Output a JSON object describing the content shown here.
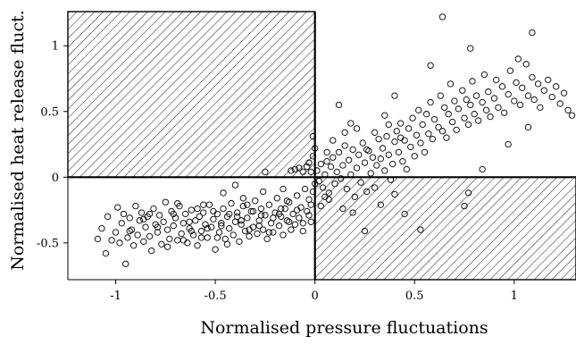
{
  "chart_data": {
    "type": "scatter",
    "xlabel": "Normalised pressure fluctuations",
    "ylabel": "Normalised heat release fluct.",
    "xlim": [
      -1.24,
      1.31
    ],
    "ylim": [
      -0.78,
      1.26
    ],
    "x_ticks": [
      -1,
      -0.5,
      0,
      0.5,
      1
    ],
    "x_tick_labels": [
      "-1",
      "-0.5",
      "0",
      "0.5",
      "1"
    ],
    "y_ticks": [
      -0.5,
      0,
      0.5,
      1
    ],
    "y_tick_labels": [
      "-0.5",
      "0",
      "0.5",
      "1"
    ],
    "grid": false,
    "marker": "open-circle",
    "hatched_regions": [
      {
        "name": "upper-left",
        "x": [
          -1.24,
          0
        ],
        "y": [
          0,
          1.26
        ]
      },
      {
        "name": "lower-right",
        "x": [
          0,
          1.31
        ],
        "y": [
          -0.78,
          0
        ]
      }
    ],
    "series": [
      {
        "points": [
          [
            -1.07,
            -0.39
          ],
          [
            -1.05,
            -0.58
          ],
          [
            -1.04,
            -0.3
          ],
          [
            -1.02,
            -0.48
          ],
          [
            -1.0,
            -0.42
          ],
          [
            -0.99,
            -0.23
          ],
          [
            -0.98,
            -0.5
          ],
          [
            -0.97,
            -0.35
          ],
          [
            -0.96,
            -0.28
          ],
          [
            -0.95,
            -0.66
          ],
          [
            -0.94,
            -0.46
          ],
          [
            -0.93,
            -0.31
          ],
          [
            -0.92,
            -0.4
          ],
          [
            -0.91,
            -0.52
          ],
          [
            -0.9,
            -0.22
          ],
          [
            -0.89,
            -0.44
          ],
          [
            -0.88,
            -0.33
          ],
          [
            -0.87,
            -0.27
          ],
          [
            -0.86,
            -0.49
          ],
          [
            -0.85,
            -0.38
          ],
          [
            -0.84,
            -0.3
          ],
          [
            -0.83,
            -0.45
          ],
          [
            -0.82,
            -0.56
          ],
          [
            -0.81,
            -0.24
          ],
          [
            -0.8,
            -0.36
          ],
          [
            -0.79,
            -0.42
          ],
          [
            -0.78,
            -0.29
          ],
          [
            -0.77,
            -0.51
          ],
          [
            -0.76,
            -0.34
          ],
          [
            -0.75,
            -0.19
          ],
          [
            -0.74,
            -0.4
          ],
          [
            -0.73,
            -0.47
          ],
          [
            -0.72,
            -0.26
          ],
          [
            -0.71,
            -0.37
          ],
          [
            -0.7,
            -0.31
          ],
          [
            -0.69,
            -0.48
          ],
          [
            -0.68,
            -0.22
          ],
          [
            -0.67,
            -0.43
          ],
          [
            -0.66,
            -0.35
          ],
          [
            -0.65,
            -0.28
          ],
          [
            -0.64,
            -0.5
          ],
          [
            -0.63,
            -0.39
          ],
          [
            -0.62,
            -0.25
          ],
          [
            -0.61,
            -0.44
          ],
          [
            -0.6,
            -0.33
          ],
          [
            -0.59,
            -0.52
          ],
          [
            -0.58,
            -0.3
          ],
          [
            -0.57,
            -0.41
          ],
          [
            -0.56,
            -0.27
          ],
          [
            -0.55,
            -0.36
          ],
          [
            -0.54,
            -0.46
          ],
          [
            -0.53,
            -0.21
          ],
          [
            -0.52,
            -0.38
          ],
          [
            -0.51,
            -0.32
          ],
          [
            -0.5,
            -0.55
          ],
          [
            -0.49,
            -0.28
          ],
          [
            -0.48,
            -0.42
          ],
          [
            -0.47,
            -0.35
          ],
          [
            -0.46,
            -0.24
          ],
          [
            -0.45,
            -0.47
          ],
          [
            -0.44,
            -0.3
          ],
          [
            -0.43,
            -0.39
          ],
          [
            -0.42,
            -0.2
          ],
          [
            -0.41,
            -0.44
          ],
          [
            -0.4,
            -0.34
          ],
          [
            -0.39,
            -0.27
          ],
          [
            -0.38,
            -0.49
          ],
          [
            -0.37,
            -0.36
          ],
          [
            -0.36,
            -0.22
          ],
          [
            -0.35,
            -0.41
          ],
          [
            -0.34,
            -0.31
          ],
          [
            -0.33,
            -0.45
          ],
          [
            -0.32,
            -0.26
          ],
          [
            -0.31,
            -0.38
          ],
          [
            -0.3,
            -0.18
          ],
          [
            -0.29,
            -0.43
          ],
          [
            -0.28,
            -0.33
          ],
          [
            -0.27,
            -0.24
          ],
          [
            -0.26,
            -0.4
          ],
          [
            -0.25,
            -0.29
          ],
          [
            -0.24,
            -0.47
          ],
          [
            -0.23,
            -0.21
          ],
          [
            -0.22,
            -0.35
          ],
          [
            -0.21,
            -0.42
          ],
          [
            -0.2,
            -0.27
          ],
          [
            -0.19,
            -0.16
          ],
          [
            -0.18,
            -0.37
          ],
          [
            -0.17,
            -0.3
          ],
          [
            -0.16,
            -0.44
          ],
          [
            -0.15,
            -0.24
          ],
          [
            -0.14,
            -0.33
          ],
          [
            -0.13,
            -0.19
          ],
          [
            -0.12,
            -0.4
          ],
          [
            -0.11,
            -0.28
          ],
          [
            -0.1,
            -0.36
          ],
          [
            -0.09,
            -0.14
          ],
          [
            -0.08,
            -0.31
          ],
          [
            -0.07,
            -0.23
          ],
          [
            -0.06,
            -0.41
          ],
          [
            -0.05,
            -0.09
          ],
          [
            -0.04,
            -0.26
          ],
          [
            -0.03,
            -0.17
          ],
          [
            -0.02,
            -0.34
          ],
          [
            -0.01,
            -0.11
          ],
          [
            0.0,
            -0.05
          ],
          [
            -0.56,
            -0.21
          ],
          [
            -0.46,
            -0.12
          ],
          [
            -0.36,
            -0.16
          ],
          [
            -0.26,
            -0.11
          ],
          [
            -0.16,
            -0.09
          ],
          [
            -0.12,
            0.05
          ],
          [
            -0.1,
            0.06
          ],
          [
            -0.08,
            0.07
          ],
          [
            -0.06,
            0.04
          ],
          [
            -0.04,
            0.08
          ],
          [
            -0.03,
            0.11
          ],
          [
            -0.02,
            0.04
          ],
          [
            -0.01,
            0.16
          ],
          [
            0.0,
            0.22
          ],
          [
            -0.01,
            0.31
          ],
          [
            0.01,
            0.05
          ],
          [
            0.02,
            -0.03
          ],
          [
            0.03,
            0.1
          ],
          [
            0.04,
            -0.08
          ],
          [
            0.05,
            0.02
          ],
          [
            0.06,
            0.12
          ],
          [
            0.07,
            -0.12
          ],
          [
            0.08,
            0.08
          ],
          [
            0.09,
            0.15
          ],
          [
            0.1,
            -0.05
          ],
          [
            0.11,
            0.04
          ],
          [
            0.12,
            0.19
          ],
          [
            0.13,
            -0.01
          ],
          [
            0.14,
            0.09
          ],
          [
            0.15,
            0.24
          ],
          [
            0.16,
            -0.09
          ],
          [
            0.17,
            0.13
          ],
          [
            0.18,
            0.02
          ],
          [
            0.19,
            0.21
          ],
          [
            0.2,
            -0.15
          ],
          [
            0.21,
            0.07
          ],
          [
            0.22,
            0.17
          ],
          [
            0.23,
            -0.04
          ],
          [
            0.24,
            0.26
          ],
          [
            0.25,
            0.11
          ],
          [
            0.26,
            -0.11
          ],
          [
            0.27,
            0.2
          ],
          [
            0.28,
            0.03
          ],
          [
            0.29,
            0.15
          ],
          [
            0.3,
            -0.08
          ],
          [
            0.31,
            0.09
          ],
          [
            0.32,
            0.29
          ],
          [
            0.33,
            0.14
          ],
          [
            0.34,
            0.22
          ],
          [
            0.35,
            0.05
          ],
          [
            0.36,
            0.31
          ],
          [
            0.37,
            0.17
          ],
          [
            0.38,
            -0.02
          ],
          [
            0.39,
            0.1
          ],
          [
            0.4,
            0.27
          ],
          [
            0.41,
            0.35
          ],
          [
            0.42,
            0.19
          ],
          [
            0.43,
            0.41
          ],
          [
            0.44,
            0.12
          ],
          [
            0.45,
            0.28
          ],
          [
            0.46,
            0.06
          ],
          [
            0.47,
            0.37
          ],
          [
            0.48,
            0.23
          ],
          [
            0.49,
            0.45
          ],
          [
            0.5,
            0.16
          ],
          [
            0.51,
            0.32
          ],
          [
            0.52,
            0.51
          ],
          [
            0.53,
            0.26
          ],
          [
            0.54,
            0.4
          ],
          [
            0.55,
            0.19
          ],
          [
            0.56,
            0.48
          ],
          [
            0.57,
            0.33
          ],
          [
            0.58,
            0.57
          ],
          [
            0.59,
            0.29
          ],
          [
            0.6,
            0.44
          ],
          [
            0.62,
            0.38
          ],
          [
            0.63,
            0.62
          ],
          [
            0.64,
            0.35
          ],
          [
            0.65,
            0.53
          ],
          [
            0.66,
            0.3
          ],
          [
            0.67,
            0.48
          ],
          [
            0.68,
            0.71
          ],
          [
            0.69,
            0.42
          ],
          [
            0.7,
            0.58
          ],
          [
            0.71,
            0.36
          ],
          [
            0.72,
            0.52
          ],
          [
            0.74,
            0.66
          ],
          [
            0.75,
            0.45
          ],
          [
            0.76,
            0.59
          ],
          [
            0.77,
            0.4
          ],
          [
            0.78,
            0.55
          ],
          [
            0.79,
            0.73
          ],
          [
            0.8,
            0.48
          ],
          [
            0.81,
            0.62
          ],
          [
            0.82,
            0.43
          ],
          [
            0.84,
            0.57
          ],
          [
            0.85,
            0.78
          ],
          [
            0.86,
            0.51
          ],
          [
            0.87,
            0.65
          ],
          [
            0.88,
            0.46
          ],
          [
            0.9,
            0.6
          ],
          [
            0.91,
            0.74
          ],
          [
            0.92,
            0.53
          ],
          [
            0.94,
            0.69
          ],
          [
            0.95,
            0.49
          ],
          [
            0.97,
            0.63
          ],
          [
            0.98,
            0.81
          ],
          [
            1.0,
            0.58
          ],
          [
            1.01,
            0.72
          ],
          [
            1.03,
            0.55
          ],
          [
            1.04,
            0.68
          ],
          [
            1.06,
            0.86
          ],
          [
            1.07,
            0.62
          ],
          [
            1.09,
            0.76
          ],
          [
            1.1,
            0.59
          ],
          [
            1.12,
            0.71
          ],
          [
            1.13,
            0.53
          ],
          [
            1.15,
            0.66
          ],
          [
            1.17,
            0.74
          ],
          [
            1.19,
            0.61
          ],
          [
            1.21,
            0.69
          ],
          [
            1.23,
            0.56
          ],
          [
            1.25,
            0.64
          ],
          [
            1.27,
            0.51
          ],
          [
            1.29,
            0.47
          ],
          [
            0.64,
            1.22
          ],
          [
            0.78,
            0.98
          ],
          [
            1.09,
            1.1
          ],
          [
            1.02,
            0.9
          ],
          [
            0.4,
            0.62
          ],
          [
            0.12,
            0.55
          ],
          [
            0.58,
            0.85
          ],
          [
            0.37,
            0.4
          ],
          [
            0.21,
            0.37
          ],
          [
            0.45,
            -0.28
          ],
          [
            0.53,
            -0.4
          ],
          [
            0.19,
            -0.27
          ],
          [
            0.25,
            -0.41
          ],
          [
            0.14,
            -0.24
          ],
          [
            0.07,
            -0.17
          ],
          [
            0.33,
            -0.21
          ],
          [
            0.4,
            -0.13
          ],
          [
            0.75,
            -0.22
          ],
          [
            0.77,
            -0.12
          ],
          [
            0.84,
            0.06
          ],
          [
            0.97,
            0.25
          ],
          [
            1.07,
            0.38
          ],
          [
            0.3,
            0.34
          ],
          [
            0.18,
            0.41
          ],
          [
            0.09,
            0.28
          ],
          [
            0.26,
            0.21
          ],
          [
            0.43,
            0.3
          ],
          [
            0.06,
            0.19
          ],
          [
            0.15,
            0.34
          ],
          [
            0.35,
            0.47
          ],
          [
            -1.09,
            -0.47
          ],
          [
            -0.86,
            -0.32
          ],
          [
            -0.74,
            -0.53
          ],
          [
            -0.66,
            -0.48
          ],
          [
            -0.62,
            -0.41
          ],
          [
            -0.54,
            -0.39
          ],
          [
            -0.49,
            -0.46
          ],
          [
            -0.44,
            -0.51
          ],
          [
            -0.39,
            -0.3
          ],
          [
            -0.33,
            -0.4
          ],
          [
            -0.28,
            -0.37
          ],
          [
            -0.23,
            -0.42
          ],
          [
            -0.18,
            -0.28
          ],
          [
            -0.13,
            -0.34
          ],
          [
            -0.09,
            -0.25
          ],
          [
            -0.06,
            -0.35
          ],
          [
            -0.03,
            -0.29
          ],
          [
            -0.02,
            -0.21
          ],
          [
            0.03,
            -0.22
          ],
          [
            0.05,
            -0.15
          ],
          [
            -0.79,
            -0.38
          ],
          [
            -0.69,
            -0.2
          ],
          [
            -0.59,
            -0.24
          ],
          [
            -0.57,
            -0.46
          ],
          [
            -0.43,
            -0.28
          ],
          [
            -0.37,
            -0.33
          ],
          [
            -0.31,
            -0.26
          ],
          [
            -0.27,
            -0.29
          ],
          [
            -0.21,
            -0.31
          ],
          [
            -0.17,
            -0.24
          ],
          [
            -0.25,
            0.04
          ],
          [
            -0.4,
            -0.06
          ],
          [
            -0.83,
            -0.28
          ],
          [
            -0.93,
            -0.41
          ],
          [
            -0.71,
            -0.28
          ],
          [
            -0.63,
            -0.34
          ],
          [
            -0.51,
            -0.26
          ],
          [
            -0.47,
            -0.37
          ],
          [
            -0.34,
            -0.21
          ],
          [
            -0.14,
            -0.18
          ]
        ]
      }
    ]
  }
}
